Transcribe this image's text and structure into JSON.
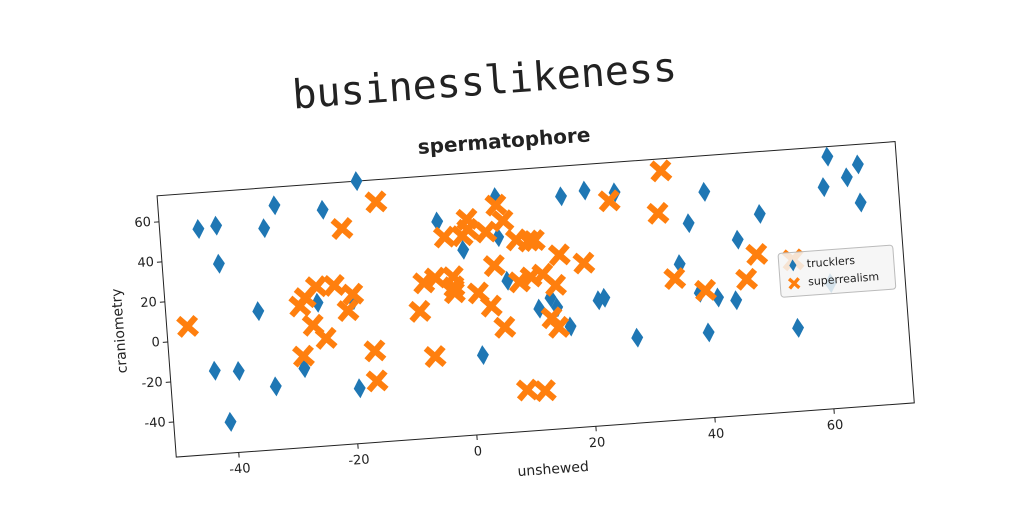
{
  "chart_data": {
    "type": "scatter",
    "title": "businesslikeness",
    "subtitle": "spermatophore",
    "x_label": "unshewed",
    "y_label": "craniometry",
    "xlim": [
      -50.5,
      73.5
    ],
    "ylim": [
      -57.5,
      73
    ],
    "xticks": [
      -40,
      -20,
      0,
      20,
      40,
      60
    ],
    "yticks": [
      -40,
      -20,
      0,
      20,
      40,
      60
    ],
    "legend": "center right",
    "series": [
      {
        "name": "trucklers",
        "color": "#1f77b4",
        "marker": "diamond",
        "x": [
          -44,
          -41,
          -41,
          -33,
          -31,
          -23,
          -35,
          -43,
          -39,
          -33,
          -28,
          -25,
          -17,
          -19,
          -19,
          -41,
          -4,
          0,
          2,
          6,
          6,
          7,
          12,
          14,
          15,
          17,
          17,
          21,
          22,
          23,
          26,
          28,
          36,
          38,
          39,
          40,
          41,
          42,
          45,
          46,
          50,
          55,
          61,
          61,
          62,
          65,
          67,
          67
        ],
        "values": [
          55,
          56,
          37,
          53,
          64,
          60,
          12,
          -16,
          -17,
          -26,
          -18,
          14,
          73,
          14,
          -30,
          -42,
          50,
          35,
          -18,
          60,
          40,
          18,
          3,
          8,
          3,
          -7,
          58,
          60,
          5,
          6,
          58,
          -15,
          20,
          40,
          5,
          -15,
          55,
          2,
          0,
          30,
          42,
          -16,
          53,
          5,
          68,
          57,
          63,
          44
        ]
      },
      {
        "name": "superrealism",
        "color": "#ff7f0e",
        "marker": "x",
        "x": [
          -47,
          -28,
          -27,
          -25,
          -22,
          -19,
          -20,
          -26,
          -24,
          -28,
          -20,
          -14,
          -16,
          -16,
          -8,
          -6,
          -7,
          -5,
          -2,
          -2,
          -2,
          0,
          1,
          1,
          2,
          4,
          5,
          6,
          6,
          7,
          9,
          11,
          12,
          9,
          11,
          13,
          14,
          15,
          15,
          16,
          20,
          9,
          12,
          25,
          33,
          34,
          35,
          40,
          47,
          49,
          55,
          4,
          -3
        ],
        "values": [
          7,
          13,
          17,
          22,
          22,
          17,
          9,
          3,
          -4,
          -12,
          50,
          62,
          -12,
          -27,
          6,
          -17,
          20,
          22,
          22,
          17,
          14,
          42,
          45,
          50,
          13,
          6,
          26,
          -5,
          56,
          48,
          38,
          37,
          37,
          17,
          19,
          20,
          -2,
          -7,
          14,
          29,
          24,
          -37,
          -38,
          54,
          46,
          67,
          13,
          6,
          10,
          22,
          18,
          43,
          42
        ]
      }
    ]
  }
}
